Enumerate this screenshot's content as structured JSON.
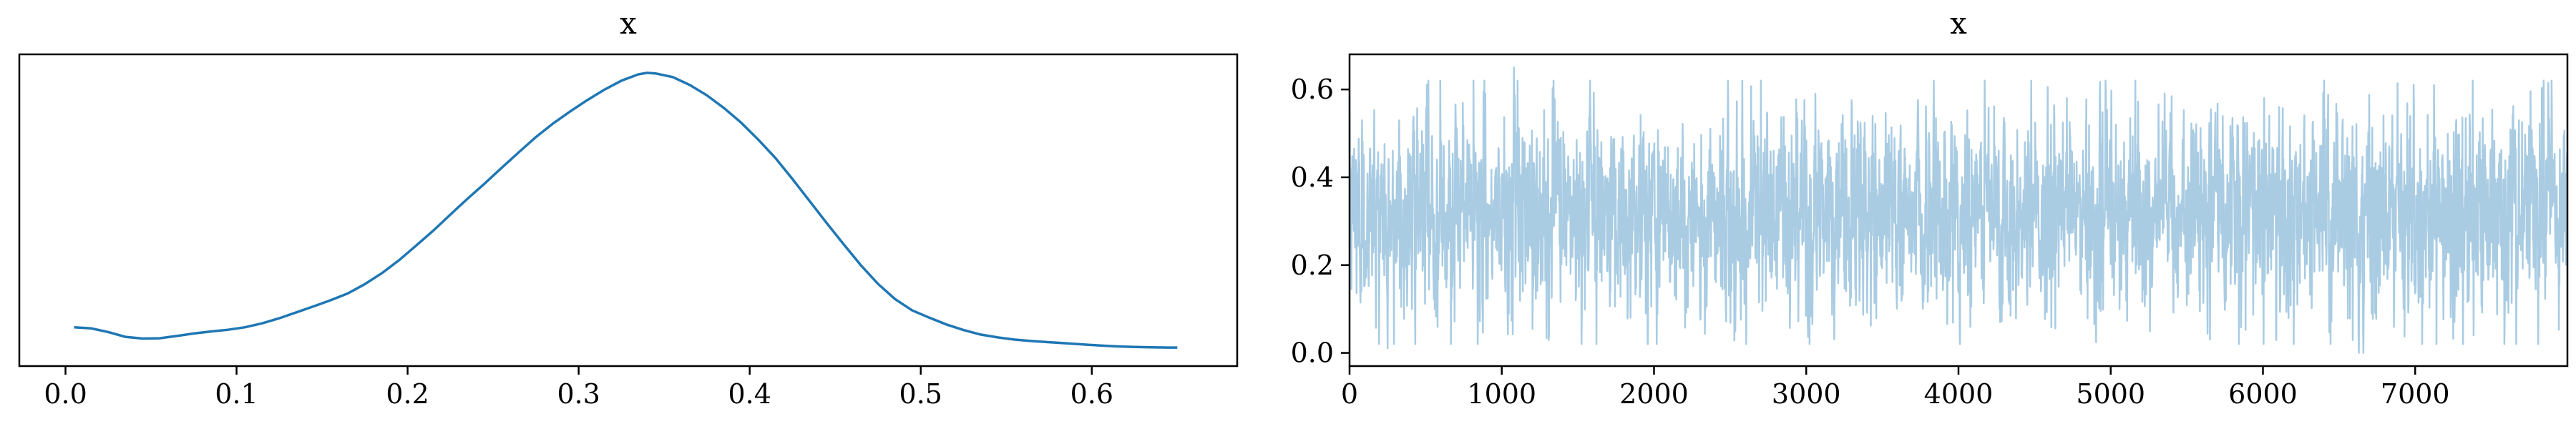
{
  "chart_data": [
    {
      "type": "line",
      "title": "x",
      "xlabel": "",
      "ylabel": "",
      "xlim": [
        -0.027,
        0.685
      ],
      "ylim": [
        0,
        1
      ],
      "x_ticks": [
        "0.0",
        "0.1",
        "0.2",
        "0.3",
        "0.4",
        "0.5",
        "0.6"
      ],
      "y_ticks": [],
      "grid": false,
      "color": "#1f77b4",
      "series": [
        {
          "x": [
            0.005,
            0.015,
            0.025,
            0.035,
            0.045,
            0.055,
            0.065,
            0.075,
            0.085,
            0.095,
            0.105,
            0.115,
            0.125,
            0.135,
            0.145,
            0.155,
            0.165,
            0.175,
            0.185,
            0.195,
            0.205,
            0.215,
            0.225,
            0.235,
            0.245,
            0.255,
            0.265,
            0.275,
            0.285,
            0.295,
            0.305,
            0.315,
            0.325,
            0.335,
            0.34,
            0.345,
            0.355,
            0.365,
            0.375,
            0.385,
            0.395,
            0.405,
            0.415,
            0.425,
            0.435,
            0.445,
            0.455,
            0.465,
            0.475,
            0.485,
            0.495,
            0.505,
            0.515,
            0.525,
            0.535,
            0.545,
            0.555,
            0.565,
            0.575,
            0.585,
            0.595,
            0.605,
            0.615,
            0.625,
            0.635,
            0.645,
            0.65
          ],
          "y": [
            0.082,
            0.078,
            0.065,
            0.048,
            0.042,
            0.043,
            0.051,
            0.06,
            0.067,
            0.073,
            0.082,
            0.096,
            0.114,
            0.135,
            0.156,
            0.178,
            0.202,
            0.235,
            0.274,
            0.32,
            0.372,
            0.425,
            0.482,
            0.538,
            0.592,
            0.648,
            0.703,
            0.757,
            0.805,
            0.848,
            0.888,
            0.925,
            0.957,
            0.98,
            0.985,
            0.983,
            0.97,
            0.942,
            0.905,
            0.86,
            0.808,
            0.748,
            0.683,
            0.608,
            0.53,
            0.452,
            0.376,
            0.302,
            0.236,
            0.182,
            0.142,
            0.116,
            0.092,
            0.072,
            0.056,
            0.046,
            0.038,
            0.033,
            0.029,
            0.025,
            0.021,
            0.017,
            0.014,
            0.012,
            0.011,
            0.01,
            0.01
          ]
        }
      ]
    },
    {
      "type": "line",
      "title": "x",
      "xlabel": "",
      "ylabel": "",
      "xlim": [
        0,
        8000
      ],
      "ylim": [
        -0.03,
        0.68
      ],
      "x_ticks": [
        "0",
        "1000",
        "2000",
        "3000",
        "4000",
        "5000",
        "6000",
        "7000"
      ],
      "y_ticks": [
        "0.0",
        "0.2",
        "0.4",
        "0.6"
      ],
      "grid": false,
      "color": "#a9cce3",
      "n_samples": 8000,
      "series": [
        {
          "x_range": [
            0,
            7999
          ],
          "typical_center": 0.32,
          "typical_band": [
            0.15,
            0.55
          ],
          "highlights": [
            {
              "x": 250,
              "y": 0.01
            },
            {
              "x": 1080,
              "y": 0.65
            },
            {
              "x": 6630,
              "y": 0.0
            },
            {
              "x": 6660,
              "y": 0.0
            }
          ]
        }
      ]
    }
  ]
}
